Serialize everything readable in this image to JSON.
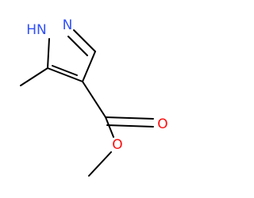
{
  "atoms": {
    "nh": "HN",
    "n": "N",
    "o_carbonyl": "O",
    "o_ester": "O"
  }
}
